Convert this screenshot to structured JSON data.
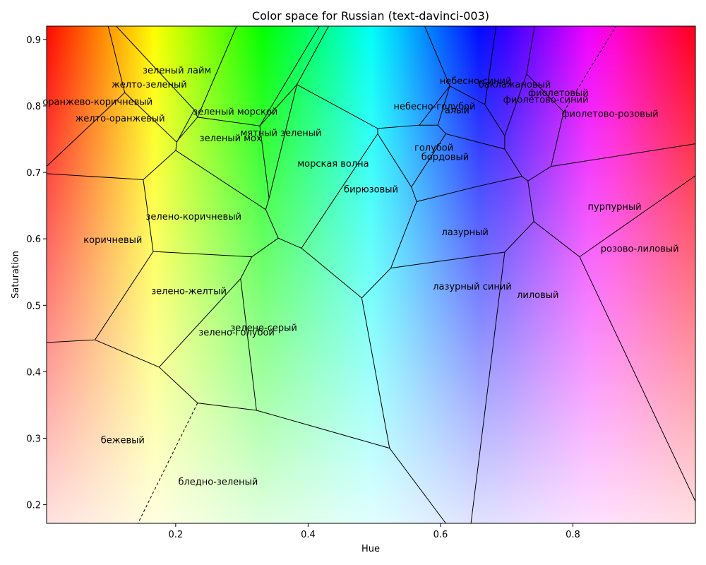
{
  "chart_data": {
    "type": "scatter",
    "title": "Color space for Russian (text-davinci-003)",
    "xlabel": "Hue",
    "ylabel": "Saturation",
    "xlim": [
      0.005,
      0.985
    ],
    "ylim": [
      0.172,
      0.92
    ],
    "xticks": [
      "0.2",
      "0.4",
      "0.6",
      "0.8"
    ],
    "xtick_values": [
      0.2,
      0.4,
      0.6,
      0.8
    ],
    "yticks": [
      "0.2",
      "0.3",
      "0.4",
      "0.5",
      "0.6",
      "0.7",
      "0.8",
      "0.9"
    ],
    "ytick_values": [
      0.2,
      0.3,
      0.4,
      0.5,
      0.6,
      0.7,
      0.8,
      0.9
    ],
    "grid": false,
    "background": "hue-saturation color map",
    "regions": [
      {
        "name": "зеленый лайм",
        "x": 0.202,
        "y": 0.854
      },
      {
        "name": "желто-зеленый",
        "x": 0.16,
        "y": 0.833
      },
      {
        "name": "оранжево-коричневый",
        "x": 0.082,
        "y": 0.807
      },
      {
        "name": "желто-оранжевый",
        "x": 0.116,
        "y": 0.782
      },
      {
        "name": "зеленый морской",
        "x": 0.29,
        "y": 0.792
      },
      {
        "name": "зеленый мох",
        "x": 0.283,
        "y": 0.752
      },
      {
        "name": "мятный зеленый",
        "x": 0.359,
        "y": 0.76
      },
      {
        "name": "морская волна",
        "x": 0.438,
        "y": 0.714
      },
      {
        "name": "небесно-синий",
        "x": 0.653,
        "y": 0.838
      },
      {
        "name": "баклажановый",
        "x": 0.712,
        "y": 0.833
      },
      {
        "name": "небесно-голубой",
        "x": 0.591,
        "y": 0.8
      },
      {
        "name": "алый",
        "x": 0.625,
        "y": 0.794
      },
      {
        "name": "фиолетовый",
        "x": 0.778,
        "y": 0.82
      },
      {
        "name": "фиолетово-синий",
        "x": 0.759,
        "y": 0.81
      },
      {
        "name": "фиолетово-розовый",
        "x": 0.856,
        "y": 0.789
      },
      {
        "name": "голубой",
        "x": 0.59,
        "y": 0.738
      },
      {
        "name": "бордовый",
        "x": 0.607,
        "y": 0.724
      },
      {
        "name": "бирюзовый",
        "x": 0.495,
        "y": 0.675
      },
      {
        "name": "зелено-коричневый",
        "x": 0.227,
        "y": 0.634
      },
      {
        "name": "коричневый",
        "x": 0.105,
        "y": 0.599
      },
      {
        "name": "пурпурный",
        "x": 0.863,
        "y": 0.649
      },
      {
        "name": "лазурный",
        "x": 0.637,
        "y": 0.611
      },
      {
        "name": "розово-лиловый",
        "x": 0.901,
        "y": 0.586
      },
      {
        "name": "лазурный синий",
        "x": 0.648,
        "y": 0.529
      },
      {
        "name": "зелено-желтый",
        "x": 0.22,
        "y": 0.522
      },
      {
        "name": "лиловый",
        "x": 0.747,
        "y": 0.516
      },
      {
        "name": "зелено-серый",
        "x": 0.333,
        "y": 0.467
      },
      {
        "name": "зелено-голубой",
        "x": 0.292,
        "y": 0.46
      },
      {
        "name": "бежевый",
        "x": 0.12,
        "y": 0.298
      },
      {
        "name": "бледно-зеленый",
        "x": 0.264,
        "y": 0.235
      }
    ],
    "boundaries": [
      [
        [
          0.098,
          0.92
        ],
        [
          0.123,
          0.82
        ],
        [
          0.005,
          0.709
        ]
      ],
      [
        [
          0.123,
          0.82
        ],
        [
          0.201,
          0.746
        ]
      ],
      [
        [
          0.11,
          0.92
        ],
        [
          0.228,
          0.794
        ]
      ],
      [
        [
          0.228,
          0.794
        ],
        [
          0.202,
          0.746
        ]
      ],
      [
        [
          0.202,
          0.746
        ],
        [
          0.2,
          0.733
        ]
      ],
      [
        [
          0.2,
          0.733
        ],
        [
          0.151,
          0.689
        ],
        [
          0.005,
          0.698
        ]
      ],
      [
        [
          0.228,
          0.794
        ],
        [
          0.233,
          0.783
        ],
        [
          0.327,
          0.77
        ],
        [
          0.383,
          0.832
        ],
        [
          0.505,
          0.766
        ],
        [
          0.568,
          0.771
        ],
        [
          0.614,
          0.83
        ],
        [
          0.667,
          0.802
        ],
        [
          0.697,
          0.755
        ],
        [
          0.73,
          0.848
        ],
        [
          0.786,
          0.791
        ],
        [
          0.767,
          0.709
        ],
        [
          0.985,
          0.743
        ]
      ],
      [
        [
          0.233,
          0.783
        ],
        [
          0.201,
          0.746
        ]
      ],
      [
        [
          0.292,
          0.92
        ],
        [
          0.233,
          0.783
        ]
      ],
      [
        [
          0.417,
          0.92
        ],
        [
          0.327,
          0.77
        ]
      ],
      [
        [
          0.327,
          0.77
        ],
        [
          0.341,
          0.661
        ],
        [
          0.383,
          0.832
        ]
      ],
      [
        [
          0.383,
          0.832
        ],
        [
          0.431,
          0.92
        ]
      ],
      [
        [
          0.341,
          0.661
        ],
        [
          0.336,
          0.644
        ],
        [
          0.2,
          0.733
        ]
      ],
      [
        [
          0.336,
          0.644
        ],
        [
          0.355,
          0.601
        ],
        [
          0.39,
          0.586
        ],
        [
          0.505,
          0.758
        ],
        [
          0.505,
          0.766
        ]
      ],
      [
        [
          0.355,
          0.601
        ],
        [
          0.315,
          0.573
        ],
        [
          0.166,
          0.581
        ],
        [
          0.151,
          0.689
        ]
      ],
      [
        [
          0.166,
          0.581
        ],
        [
          0.078,
          0.448
        ],
        [
          0.005,
          0.444
        ]
      ],
      [
        [
          0.078,
          0.448
        ],
        [
          0.175,
          0.407
        ],
        [
          0.233,
          0.353
        ],
        [
          0.322,
          0.342
        ],
        [
          0.523,
          0.285
        ],
        [
          0.608,
          0.172
        ]
      ],
      [
        [
          0.175,
          0.407
        ],
        [
          0.298,
          0.54
        ],
        [
          0.315,
          0.573
        ]
      ],
      [
        [
          0.298,
          0.54
        ],
        [
          0.322,
          0.342
        ]
      ],
      [
        [
          0.39,
          0.586
        ],
        [
          0.481,
          0.511
        ],
        [
          0.523,
          0.285
        ]
      ],
      [
        [
          0.481,
          0.511
        ],
        [
          0.525,
          0.556
        ],
        [
          0.697,
          0.58
        ],
        [
          0.741,
          0.626
        ],
        [
          0.81,
          0.573
        ],
        [
          0.985,
          0.205
        ]
      ],
      [
        [
          0.697,
          0.58
        ],
        [
          0.646,
          0.172
        ]
      ],
      [
        [
          0.741,
          0.626
        ],
        [
          0.732,
          0.687
        ],
        [
          0.723,
          0.694
        ],
        [
          0.652,
          0.678
        ],
        [
          0.564,
          0.656
        ]
      ],
      [
        [
          0.525,
          0.556
        ],
        [
          0.564,
          0.656
        ],
        [
          0.556,
          0.678
        ],
        [
          0.505,
          0.758
        ]
      ],
      [
        [
          0.556,
          0.678
        ],
        [
          0.608,
          0.758
        ],
        [
          0.697,
          0.735
        ],
        [
          0.723,
          0.694
        ]
      ],
      [
        [
          0.608,
          0.758
        ],
        [
          0.596,
          0.771
        ],
        [
          0.568,
          0.771
        ]
      ],
      [
        [
          0.596,
          0.771
        ],
        [
          0.614,
          0.83
        ]
      ],
      [
        [
          0.576,
          0.92
        ],
        [
          0.614,
          0.83
        ]
      ],
      [
        [
          0.684,
          0.92
        ],
        [
          0.667,
          0.802
        ]
      ],
      [
        [
          0.742,
          0.92
        ],
        [
          0.73,
          0.848
        ]
      ],
      [
        [
          0.697,
          0.755
        ],
        [
          0.697,
          0.735
        ]
      ],
      [
        [
          0.732,
          0.687
        ],
        [
          0.767,
          0.709
        ]
      ],
      [
        [
          0.81,
          0.573
        ],
        [
          0.985,
          0.695
        ]
      ]
    ],
    "dashed_boundaries": [
      [
        [
          0.786,
          0.791
        ],
        [
          0.865,
          0.92
        ]
      ],
      [
        [
          0.233,
          0.353
        ],
        [
          0.143,
          0.172
        ]
      ]
    ]
  }
}
